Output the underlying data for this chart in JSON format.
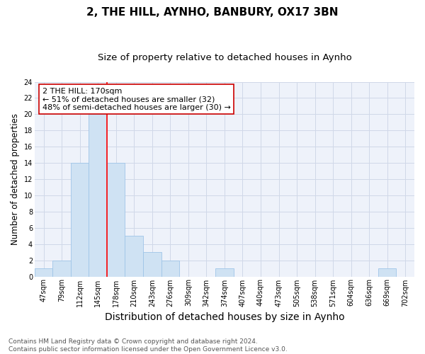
{
  "title": "2, THE HILL, AYNHO, BANBURY, OX17 3BN",
  "subtitle": "Size of property relative to detached houses in Aynho",
  "xlabel": "Distribution of detached houses by size in Aynho",
  "ylabel": "Number of detached properties",
  "bar_labels": [
    "47sqm",
    "79sqm",
    "112sqm",
    "145sqm",
    "178sqm",
    "210sqm",
    "243sqm",
    "276sqm",
    "309sqm",
    "342sqm",
    "374sqm",
    "407sqm",
    "440sqm",
    "473sqm",
    "505sqm",
    "538sqm",
    "571sqm",
    "604sqm",
    "636sqm",
    "669sqm",
    "702sqm"
  ],
  "bar_values": [
    1,
    2,
    14,
    20,
    14,
    5,
    3,
    2,
    0,
    0,
    1,
    0,
    0,
    0,
    0,
    0,
    0,
    0,
    0,
    1,
    0
  ],
  "bar_color": "#cfe2f3",
  "bar_edge_color": "#9fc5e8",
  "redline_index": 4,
  "annotation_text": "2 THE HILL: 170sqm\n← 51% of detached houses are smaller (32)\n48% of semi-detached houses are larger (30) →",
  "annotation_box_edge": "#cc0000",
  "ylim": [
    0,
    24
  ],
  "yticks": [
    0,
    2,
    4,
    6,
    8,
    10,
    12,
    14,
    16,
    18,
    20,
    22,
    24
  ],
  "footnote": "Contains HM Land Registry data © Crown copyright and database right 2024.\nContains public sector information licensed under the Open Government Licence v3.0.",
  "title_fontsize": 11,
  "subtitle_fontsize": 9.5,
  "xlabel_fontsize": 10,
  "ylabel_fontsize": 8.5,
  "tick_fontsize": 7,
  "annotation_fontsize": 8,
  "footnote_fontsize": 6.5,
  "grid_color": "#d0d8e8",
  "background_color": "#eef2fa"
}
